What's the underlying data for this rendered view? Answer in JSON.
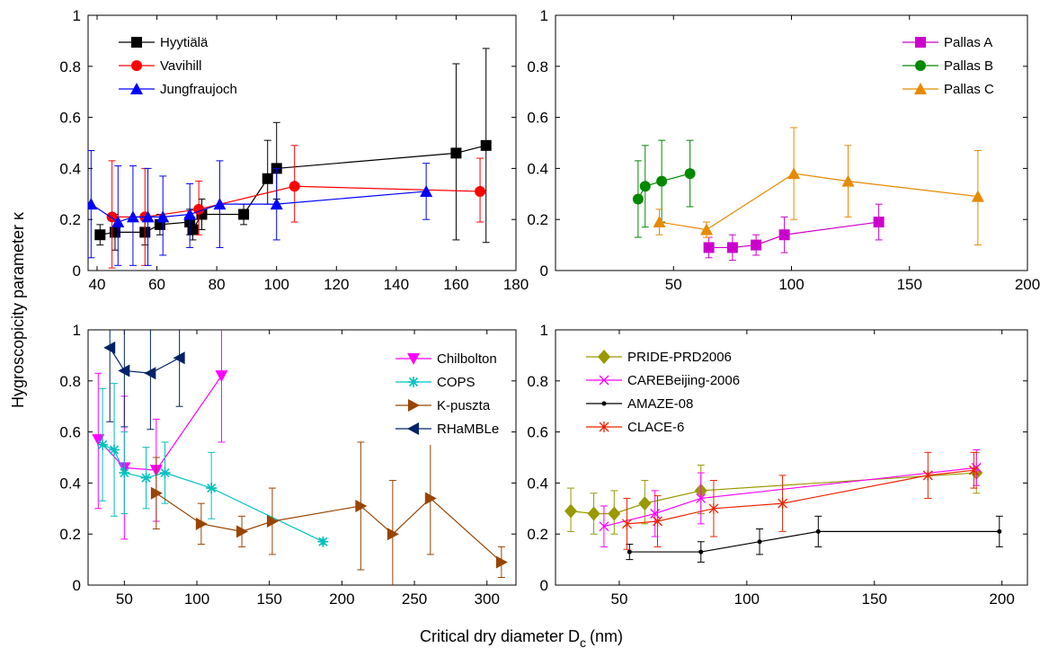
{
  "figure": {
    "ylabel": "Hygroscopicity parameter κ",
    "xlabel_main": "Critical dry diameter D",
    "xlabel_sub": "c",
    "xlabel_unit": "(nm)"
  },
  "chart_data": [
    {
      "type": "line",
      "panel": "top-left",
      "xlim": [
        37,
        180
      ],
      "ylim": [
        0,
        1
      ],
      "xticks": [
        40,
        60,
        80,
        100,
        120,
        140,
        160,
        180
      ],
      "yticks": [
        0,
        0.2,
        0.4,
        0.6,
        0.8,
        1
      ],
      "legend": "top-left",
      "series": [
        {
          "name": "Hyytiälä",
          "color": "#000000",
          "marker": "square",
          "x": [
            41,
            46,
            56,
            61,
            71,
            72,
            75,
            89,
            97,
            100,
            160,
            170
          ],
          "y": [
            0.14,
            0.15,
            0.15,
            0.18,
            0.19,
            0.16,
            0.22,
            0.22,
            0.36,
            0.4,
            0.46,
            0.49
          ],
          "err_lo": [
            0.04,
            0.07,
            0.05,
            0.04,
            0.05,
            0.04,
            0.06,
            0.04,
            0.1,
            0.12,
            0.34,
            0.38
          ],
          "err_hi": [
            0.04,
            0.07,
            0.05,
            0.04,
            0.05,
            0.04,
            0.06,
            0.04,
            0.15,
            0.18,
            0.35,
            0.38
          ]
        },
        {
          "name": "Vavihill",
          "color": "#ff0000",
          "marker": "circle",
          "x": [
            45,
            56,
            74,
            106,
            168
          ],
          "y": [
            0.21,
            0.21,
            0.24,
            0.33,
            0.31
          ],
          "err_lo": [
            0.2,
            0.19,
            0.1,
            0.14,
            0.12
          ],
          "err_hi": [
            0.22,
            0.19,
            0.11,
            0.16,
            0.13
          ]
        },
        {
          "name": "Jungfraujoch",
          "color": "#0000ff",
          "marker": "triangle-up",
          "x": [
            38,
            47,
            52,
            57,
            62,
            71,
            81,
            100,
            150
          ],
          "y": [
            0.26,
            0.19,
            0.21,
            0.21,
            0.21,
            0.22,
            0.26,
            0.26,
            0.31
          ],
          "err_lo": [
            0.21,
            0.17,
            0.19,
            0.19,
            0.15,
            0.13,
            0.17,
            0.14,
            0.11
          ],
          "err_hi": [
            0.21,
            0.22,
            0.2,
            0.19,
            0.16,
            0.12,
            0.17,
            0.14,
            0.11
          ]
        }
      ]
    },
    {
      "type": "line",
      "panel": "top-right",
      "xlim": [
        0,
        200
      ],
      "ylim": [
        0,
        1
      ],
      "xticks": [
        50,
        100,
        150,
        200
      ],
      "xticklabels": [
        "50",
        "100",
        "150",
        "200"
      ],
      "yticks": [
        0,
        0.2,
        0.4,
        0.6,
        0.8,
        1
      ],
      "legend": "top-right",
      "series": [
        {
          "name": "Pallas A",
          "color": "#cc00cc",
          "marker": "square",
          "x": [
            65,
            75,
            85,
            97,
            137
          ],
          "y": [
            0.09,
            0.09,
            0.1,
            0.14,
            0.19
          ],
          "err_lo": [
            0.04,
            0.05,
            0.04,
            0.07,
            0.07
          ],
          "err_hi": [
            0.04,
            0.05,
            0.04,
            0.07,
            0.07
          ]
        },
        {
          "name": "Pallas B",
          "color": "#008800",
          "marker": "circle",
          "x": [
            35,
            38,
            45,
            57
          ],
          "y": [
            0.28,
            0.33,
            0.35,
            0.38
          ],
          "err_lo": [
            0.15,
            0.16,
            0.16,
            0.13
          ],
          "err_hi": [
            0.15,
            0.16,
            0.16,
            0.13
          ]
        },
        {
          "name": "Pallas C",
          "color": "#e68a00",
          "marker": "triangle-up",
          "x": [
            44,
            64,
            101,
            124,
            179
          ],
          "y": [
            0.19,
            0.16,
            0.38,
            0.35,
            0.29
          ],
          "err_lo": [
            0.05,
            0.03,
            0.18,
            0.14,
            0.19
          ],
          "err_hi": [
            0.05,
            0.03,
            0.18,
            0.14,
            0.18
          ]
        }
      ]
    },
    {
      "type": "line",
      "panel": "bottom-left",
      "xlim": [
        25,
        320
      ],
      "ylim": [
        0,
        1
      ],
      "xticks": [
        50,
        100,
        150,
        200,
        250,
        300
      ],
      "yticks": [
        0,
        0.2,
        0.4,
        0.6,
        0.8,
        1
      ],
      "legend": "top-right",
      "series": [
        {
          "name": "Chilbolton",
          "color": "#ff00ff",
          "marker": "triangle-down",
          "x": [
            32,
            50,
            72,
            117
          ],
          "y": [
            0.57,
            0.46,
            0.45,
            0.82
          ],
          "err_lo": [
            0.27,
            0.28,
            0.2,
            0.26
          ],
          "err_hi": [
            0.26,
            0.28,
            0.2,
            0.2
          ]
        },
        {
          "name": "COPS",
          "color": "#00c0c0",
          "marker": "star",
          "x": [
            35,
            43,
            50,
            65,
            78,
            110,
            187
          ],
          "y": [
            0.55,
            0.53,
            0.44,
            0.42,
            0.44,
            0.38,
            0.17
          ],
          "err_lo": [
            0.22,
            0.26,
            0.16,
            0.12,
            0.12,
            0.12,
            0.01
          ],
          "err_hi": [
            0.22,
            0.26,
            0.16,
            0.12,
            0.12,
            0.14,
            0.01
          ]
        },
        {
          "name": "K-puszta",
          "color": "#994400",
          "marker": "triangle-right",
          "x": [
            72,
            103,
            131,
            152,
            213,
            235,
            261,
            310
          ],
          "y": [
            0.36,
            0.24,
            0.21,
            0.25,
            0.31,
            0.2,
            0.34,
            0.09
          ],
          "err_lo": [
            0.14,
            0.08,
            0.06,
            0.13,
            0.25,
            0.21,
            0.22,
            0.06
          ],
          "err_hi": [
            0.14,
            0.08,
            0.06,
            0.13,
            0.25,
            0.21,
            0.22,
            0.06
          ]
        },
        {
          "name": "RHaMBLe",
          "color": "#002266",
          "marker": "triangle-left",
          "x": [
            40,
            50,
            68,
            88
          ],
          "y": [
            0.93,
            0.84,
            0.83,
            0.89
          ],
          "err_lo": [
            0.29,
            0.22,
            0.22,
            0.19
          ],
          "err_hi": [
            0.29,
            0.22,
            0.22,
            0.19
          ]
        }
      ]
    },
    {
      "type": "line",
      "panel": "bottom-right",
      "xlim": [
        25,
        210
      ],
      "ylim": [
        0,
        1
      ],
      "xticks": [
        50,
        100,
        150,
        200
      ],
      "yticks": [
        0,
        0.2,
        0.4,
        0.6,
        0.8,
        1
      ],
      "legend": "top-left",
      "series": [
        {
          "name": "PRIDE-PRD2006",
          "color": "#999900",
          "marker": "diamond",
          "x": [
            31,
            40,
            48,
            60,
            82,
            190
          ],
          "y": [
            0.29,
            0.28,
            0.28,
            0.32,
            0.37,
            0.44
          ],
          "err_lo": [
            0.08,
            0.08,
            0.08,
            0.08,
            0.09,
            0.08
          ],
          "err_hi": [
            0.09,
            0.08,
            0.09,
            0.09,
            0.1,
            0.08
          ]
        },
        {
          "name": "CAREBeijing-2006",
          "color": "#ff00ff",
          "marker": "x",
          "x": [
            44,
            64,
            82,
            190
          ],
          "y": [
            0.23,
            0.28,
            0.34,
            0.46
          ],
          "err_lo": [
            0.08,
            0.09,
            0.1,
            0.07
          ],
          "err_hi": [
            0.08,
            0.09,
            0.1,
            0.07
          ]
        },
        {
          "name": "AMAZE-08",
          "color": "#000000",
          "marker": "dot",
          "x": [
            54,
            82,
            105,
            128,
            199
          ],
          "y": [
            0.13,
            0.13,
            0.17,
            0.21,
            0.21
          ],
          "err_lo": [
            0.03,
            0.04,
            0.05,
            0.06,
            0.06
          ],
          "err_hi": [
            0.03,
            0.04,
            0.05,
            0.06,
            0.06
          ]
        },
        {
          "name": "CLACE-6",
          "color": "#ee2200",
          "marker": "asterisk",
          "x": [
            53,
            65,
            87,
            114,
            171,
            189
          ],
          "y": [
            0.24,
            0.25,
            0.3,
            0.32,
            0.43,
            0.45
          ],
          "err_lo": [
            0.1,
            0.1,
            0.11,
            0.11,
            0.09,
            0.07
          ],
          "err_hi": [
            0.1,
            0.1,
            0.11,
            0.11,
            0.09,
            0.07
          ]
        }
      ]
    }
  ]
}
